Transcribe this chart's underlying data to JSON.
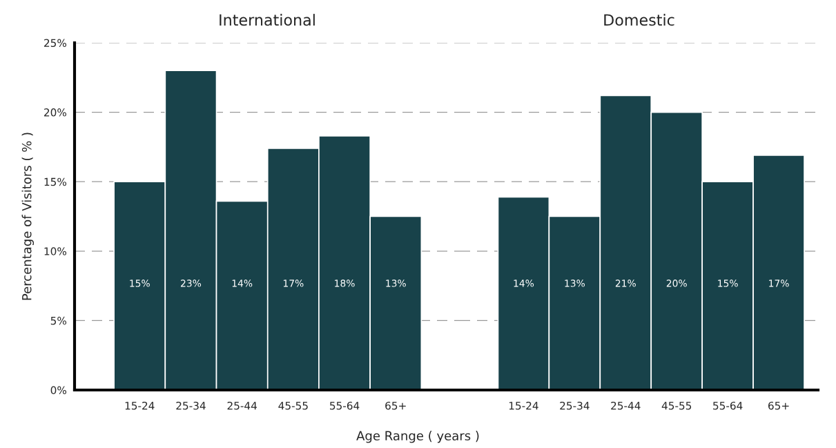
{
  "chart_data": [
    {
      "type": "bar",
      "title": "International",
      "xlabel": "Age Range ( years )",
      "ylabel": "Percentage of Visitors ( % )",
      "categories": [
        "15-24",
        "25-34",
        "25-44",
        "45-55",
        "55-64",
        "65+"
      ],
      "values": [
        15.0,
        23.0,
        13.6,
        17.4,
        18.3,
        12.5
      ],
      "value_labels": [
        "15%",
        "23%",
        "14%",
        "17%",
        "18%",
        "13%"
      ],
      "color": "#18424a",
      "ylim": [
        0,
        25
      ],
      "yticks": [
        {
          "value": 0,
          "label": "0%"
        },
        {
          "value": 5,
          "label": "5%"
        },
        {
          "value": 10,
          "label": "10%"
        },
        {
          "value": 15,
          "label": "15%"
        },
        {
          "value": 20,
          "label": "20%"
        },
        {
          "value": 25,
          "label": "25%"
        }
      ],
      "grid": "y"
    },
    {
      "type": "bar",
      "title": "Domestic",
      "categories": [
        "15-24",
        "25-34",
        "25-44",
        "45-55",
        "55-64",
        "65+"
      ],
      "values": [
        13.9,
        12.5,
        21.2,
        20.0,
        15.0,
        16.9
      ],
      "value_labels": [
        "14%",
        "13%",
        "21%",
        "20%",
        "15%",
        "17%"
      ],
      "color": "#18424a",
      "ylim": [
        0,
        25
      ],
      "yticks": [
        {
          "value": 0,
          "label": null
        },
        {
          "value": 5,
          "label": null
        },
        {
          "value": 10,
          "label": null
        },
        {
          "value": 15,
          "label": null
        },
        {
          "value": 20,
          "label": null
        },
        {
          "value": 25,
          "label": null
        }
      ],
      "grid": "y",
      "tick_labels": "x"
    }
  ]
}
